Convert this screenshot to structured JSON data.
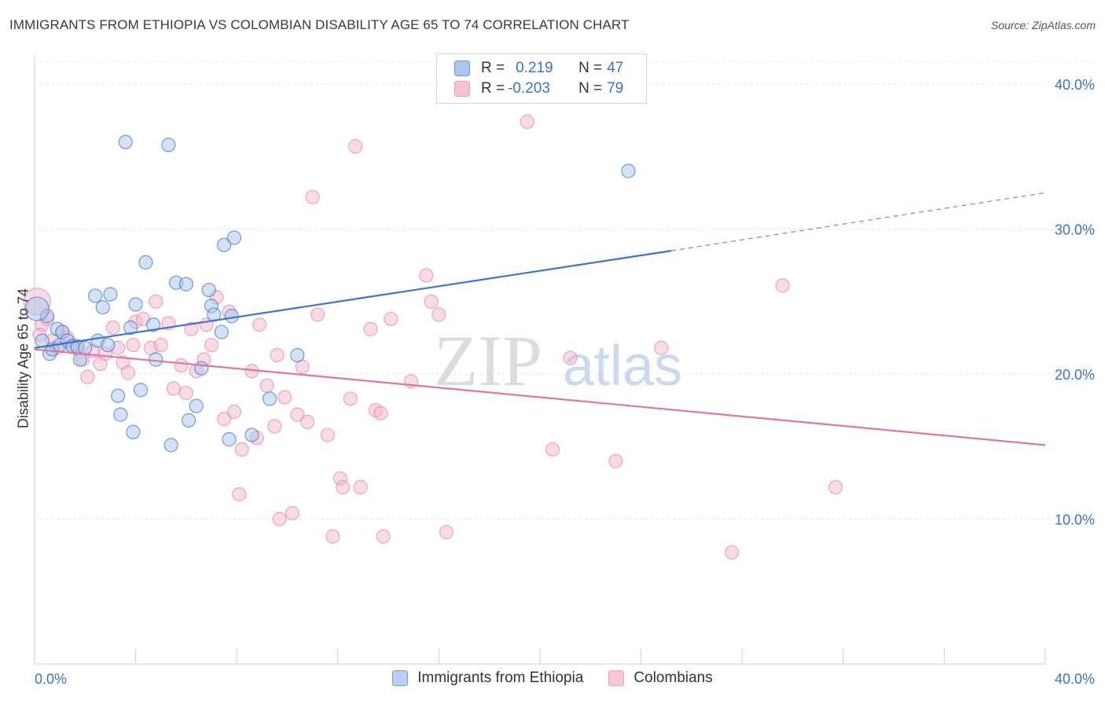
{
  "title": "IMMIGRANTS FROM ETHIOPIA VS COLOMBIAN DISABILITY AGE 65 TO 74 CORRELATION CHART",
  "source": "Source: ZipAtlas.com",
  "watermark": {
    "zip": "ZIP",
    "atlas": "atlas"
  },
  "colors": {
    "blue": "#3b73d4",
    "blue_fill": "#a9c6ee",
    "pink": "#e5739d",
    "pink_fill": "#f4b8cc",
    "grid": "#e6e6e6",
    "tick_label": "#3b73c4"
  },
  "legend": {
    "rows": [
      {
        "r_label": "R = ",
        "r_value": "0.219",
        "n_label": "N = ",
        "n_value": "47",
        "color": "#a9c6ee",
        "border": "#6f9bd8"
      },
      {
        "r_label": "R = ",
        "r_value": "-0.203",
        "n_label": "N = ",
        "n_value": "79",
        "color": "#f7c3d4",
        "border": "#e8a0b8"
      }
    ]
  },
  "bottom_legend": [
    {
      "label": "Immigrants from Ethiopia",
      "color": "#b9d0f2",
      "border": "#6f9bd8"
    },
    {
      "label": "Colombians",
      "color": "#f7c6d6",
      "border": "#e8a0b8"
    }
  ],
  "chart_data": {
    "type": "scatter",
    "title": "IMMIGRANTS FROM ETHIOPIA VS COLOMBIAN DISABILITY AGE 65 TO 74 CORRELATION CHART",
    "xlabel": "",
    "ylabel": "Disability Age 65 to 74",
    "xlim": [
      0,
      40
    ],
    "ylim": [
      0,
      42
    ],
    "x_tick_labels": [
      "0.0%",
      "40.0%"
    ],
    "y_ticks": [
      10,
      20,
      30,
      40
    ],
    "y_tick_labels": [
      "10.0%",
      "20.0%",
      "30.0%",
      "40.0%"
    ],
    "grid": true,
    "series": [
      {
        "name": "Immigrants from Ethiopia",
        "points": [
          [
            0.3,
            22.3
          ],
          [
            0.5,
            24.0
          ],
          [
            0.6,
            21.4
          ],
          [
            0.7,
            21.7
          ],
          [
            0.9,
            23.1
          ],
          [
            1.0,
            22.0
          ],
          [
            1.1,
            22.9
          ],
          [
            1.3,
            22.3
          ],
          [
            1.5,
            21.9
          ],
          [
            1.7,
            21.9
          ],
          [
            1.8,
            21.0
          ],
          [
            2.0,
            21.8
          ],
          [
            2.4,
            25.4
          ],
          [
            2.5,
            22.3
          ],
          [
            2.7,
            24.6
          ],
          [
            2.9,
            22.0
          ],
          [
            3.0,
            25.5
          ],
          [
            3.3,
            18.5
          ],
          [
            3.4,
            17.2
          ],
          [
            3.6,
            36.0
          ],
          [
            3.8,
            23.2
          ],
          [
            3.9,
            16.0
          ],
          [
            4.0,
            24.8
          ],
          [
            4.2,
            18.9
          ],
          [
            4.4,
            27.7
          ],
          [
            4.8,
            21.0
          ],
          [
            4.7,
            23.4
          ],
          [
            5.3,
            35.8
          ],
          [
            5.4,
            15.1
          ],
          [
            5.6,
            26.3
          ],
          [
            6.0,
            26.2
          ],
          [
            6.1,
            16.8
          ],
          [
            6.4,
            17.8
          ],
          [
            6.6,
            20.4
          ],
          [
            6.9,
            25.8
          ],
          [
            7.0,
            24.7
          ],
          [
            7.1,
            24.1
          ],
          [
            7.4,
            22.9
          ],
          [
            7.5,
            28.9
          ],
          [
            7.7,
            15.5
          ],
          [
            7.9,
            29.4
          ],
          [
            7.8,
            24.0
          ],
          [
            8.6,
            15.8
          ],
          [
            9.3,
            18.3
          ],
          [
            10.4,
            21.3
          ],
          [
            23.5,
            34.0
          ],
          [
            0.1,
            24.5
          ]
        ],
        "trend": {
          "x": [
            0,
            25.2
          ],
          "y": [
            21.8,
            28.5
          ],
          "dashed_extension": {
            "x": [
              25.2,
              40
            ],
            "y": [
              28.5,
              32.5
            ]
          }
        }
      },
      {
        "name": "Colombians",
        "points": [
          [
            0.1,
            25.0
          ],
          [
            0.3,
            23.4
          ],
          [
            0.5,
            23.8
          ],
          [
            0.7,
            22.3
          ],
          [
            0.9,
            21.8
          ],
          [
            1.1,
            22.9
          ],
          [
            1.3,
            22.5
          ],
          [
            1.5,
            22.0
          ],
          [
            1.7,
            21.7
          ],
          [
            1.9,
            21.0
          ],
          [
            2.1,
            19.8
          ],
          [
            2.3,
            21.6
          ],
          [
            2.6,
            20.7
          ],
          [
            2.8,
            21.4
          ],
          [
            3.1,
            23.2
          ],
          [
            3.3,
            21.8
          ],
          [
            3.5,
            20.8
          ],
          [
            3.7,
            20.1
          ],
          [
            3.9,
            22.0
          ],
          [
            4.0,
            23.6
          ],
          [
            4.3,
            23.8
          ],
          [
            4.6,
            21.8
          ],
          [
            4.8,
            25.0
          ],
          [
            5.0,
            22.0
          ],
          [
            5.3,
            23.5
          ],
          [
            5.5,
            19.0
          ],
          [
            5.8,
            20.6
          ],
          [
            6.0,
            18.7
          ],
          [
            6.2,
            23.1
          ],
          [
            6.4,
            20.2
          ],
          [
            6.7,
            21.0
          ],
          [
            6.8,
            23.4
          ],
          [
            7.0,
            22.0
          ],
          [
            7.2,
            25.3
          ],
          [
            7.5,
            16.9
          ],
          [
            7.7,
            24.3
          ],
          [
            7.9,
            17.4
          ],
          [
            8.1,
            11.7
          ],
          [
            8.2,
            14.8
          ],
          [
            8.6,
            20.2
          ],
          [
            8.8,
            15.6
          ],
          [
            8.9,
            23.4
          ],
          [
            9.2,
            19.2
          ],
          [
            9.5,
            16.4
          ],
          [
            9.6,
            21.3
          ],
          [
            9.7,
            10.0
          ],
          [
            9.9,
            18.4
          ],
          [
            10.2,
            10.4
          ],
          [
            10.4,
            17.2
          ],
          [
            10.6,
            20.5
          ],
          [
            10.8,
            16.7
          ],
          [
            11.0,
            32.2
          ],
          [
            11.2,
            24.1
          ],
          [
            11.6,
            15.8
          ],
          [
            11.8,
            8.8
          ],
          [
            12.1,
            12.8
          ],
          [
            12.2,
            12.2
          ],
          [
            12.5,
            18.3
          ],
          [
            12.7,
            35.7
          ],
          [
            12.9,
            12.2
          ],
          [
            13.3,
            23.1
          ],
          [
            13.5,
            17.5
          ],
          [
            13.7,
            17.3
          ],
          [
            13.8,
            8.8
          ],
          [
            14.1,
            23.8
          ],
          [
            14.9,
            19.5
          ],
          [
            15.5,
            26.8
          ],
          [
            15.7,
            25.0
          ],
          [
            16.0,
            24.1
          ],
          [
            16.3,
            9.1
          ],
          [
            19.5,
            37.4
          ],
          [
            20.5,
            14.8
          ],
          [
            21.2,
            21.1
          ],
          [
            23.0,
            14.0
          ],
          [
            24.8,
            21.8
          ],
          [
            27.6,
            7.7
          ],
          [
            29.6,
            26.1
          ],
          [
            31.7,
            12.2
          ],
          [
            0.2,
            22.7
          ]
        ],
        "trend": {
          "x": [
            0,
            40
          ],
          "y": [
            21.7,
            15.1
          ]
        }
      }
    ]
  }
}
